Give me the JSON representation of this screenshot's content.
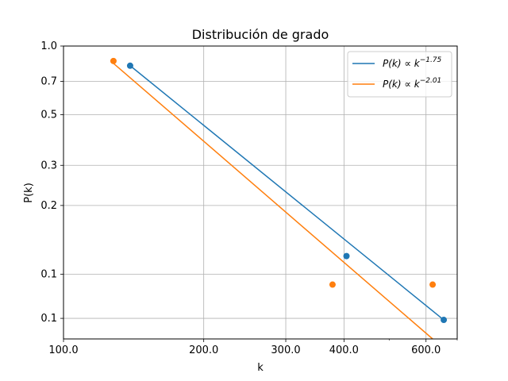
{
  "chart_data": {
    "type": "line",
    "title": "Distribución de grado",
    "xlabel": "k",
    "ylabel": "P(k)",
    "x_scale": "log",
    "y_scale": "log",
    "xlim": [
      100,
      700
    ],
    "ylim": [
      0.052,
      1.0
    ],
    "grid": true,
    "legend_position": "top-right",
    "x_ticks": [
      {
        "value": 100,
        "label": "100.0"
      },
      {
        "value": 200,
        "label": "200.0"
      },
      {
        "value": 300,
        "label": "300.0"
      },
      {
        "value": 400,
        "label": "400.0"
      },
      {
        "value": 600,
        "label": "600.0"
      }
    ],
    "y_ticks": [
      {
        "value": 1.0,
        "label": "1.0"
      },
      {
        "value": 0.7,
        "label": "0.7"
      },
      {
        "value": 0.5,
        "label": "0.5"
      },
      {
        "value": 0.3,
        "label": "0.3"
      },
      {
        "value": 0.2,
        "label": "0.2"
      },
      {
        "value": 0.1,
        "label": "0.1"
      },
      {
        "value": 0.064,
        "label": "0.1"
      }
    ],
    "series": [
      {
        "name": "P(k) ∝ k^-1.75",
        "legend_base": "P(k) ∝ k",
        "legend_exp": "−1.75",
        "color": "#1f77b4",
        "points": [
          [
            139,
            0.82
          ],
          [
            405,
            0.12
          ],
          [
            655,
            0.063
          ]
        ],
        "fit_line": [
          [
            139,
            0.82
          ],
          [
            655,
            0.063
          ]
        ]
      },
      {
        "name": "P(k) ∝ k^-2.01",
        "legend_base": "P(k) ∝ k",
        "legend_exp": "−2.01",
        "color": "#ff7f0e",
        "points": [
          [
            128,
            0.86
          ],
          [
            378,
            0.09
          ],
          [
            620,
            0.09
          ]
        ],
        "fit_line": [
          [
            128,
            0.84
          ],
          [
            620,
            0.052
          ]
        ]
      }
    ]
  }
}
